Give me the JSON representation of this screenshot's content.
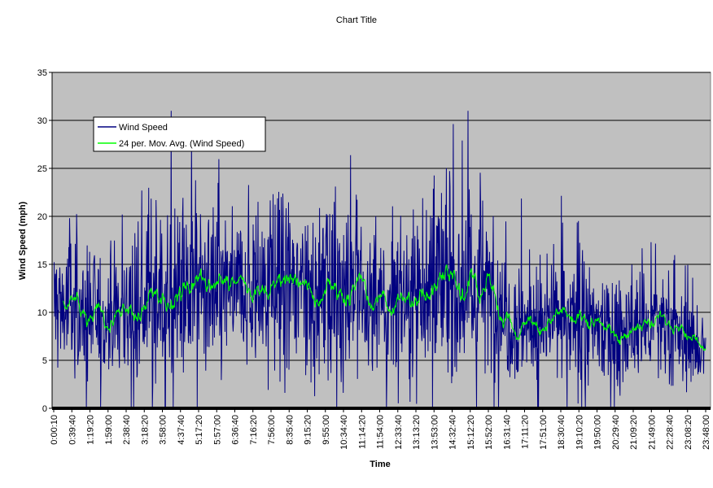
{
  "chart_data": {
    "type": "line",
    "title": "Chart Title",
    "xlabel": "Time",
    "ylabel": "Wind Speed (mph)",
    "ylim": [
      0,
      35
    ],
    "y_ticks": [
      0,
      5,
      10,
      15,
      20,
      25,
      30,
      35
    ],
    "x_tick_labels": [
      "0:00:10",
      "0:39:40",
      "1:19:20",
      "1:59:00",
      "2:38:40",
      "3:18:20",
      "3:58:00",
      "4:37:40",
      "5:17:20",
      "5:57:00",
      "6:36:40",
      "7:16:20",
      "7:56:00",
      "8:35:40",
      "9:15:20",
      "9:55:00",
      "10:34:40",
      "11:14:20",
      "11:54:00",
      "12:33:40",
      "13:13:20",
      "13:53:00",
      "14:32:40",
      "15:12:20",
      "15:52:00",
      "16:31:40",
      "17:11:20",
      "17:51:00",
      "18:30:40",
      "19:10:20",
      "19:50:00",
      "20:29:40",
      "21:09:20",
      "21:49:00",
      "22:28:40",
      "23:08:20",
      "23:48:00"
    ],
    "grid": true,
    "legend_position": "top-left",
    "series": [
      {
        "name": "Wind Speed",
        "color": "#000080",
        "sample_interval": "10 s",
        "values_summary": "dense 10-second wind speed samples, mostly 4-20 mph, peaks near 31 mph"
      },
      {
        "name": "24 per. Mov. Avg. (Wind Speed)",
        "color": "#00ff00",
        "moving_average_trend": [
          {
            "time": "0:00:10",
            "value": 11.0
          },
          {
            "time": "1:19:20",
            "value": 9.5
          },
          {
            "time": "2:38:40",
            "value": 10.0
          },
          {
            "time": "3:58:00",
            "value": 12.0
          },
          {
            "time": "5:17:20",
            "value": 12.5
          },
          {
            "time": "6:36:40",
            "value": 12.0
          },
          {
            "time": "7:56:00",
            "value": 12.0
          },
          {
            "time": "8:35:40",
            "value": 13.0
          },
          {
            "time": "9:15:20",
            "value": 12.0
          },
          {
            "time": "9:55:00",
            "value": 11.5
          },
          {
            "time": "10:34:40",
            "value": 13.0
          },
          {
            "time": "11:14:20",
            "value": 11.5
          },
          {
            "time": "11:54:00",
            "value": 10.5
          },
          {
            "time": "12:33:40",
            "value": 11.0
          },
          {
            "time": "13:13:20",
            "value": 12.5
          },
          {
            "time": "13:53:00",
            "value": 13.0
          },
          {
            "time": "14:32:40",
            "value": 12.5
          },
          {
            "time": "15:12:20",
            "value": 12.5
          },
          {
            "time": "15:52:00",
            "value": 12.0
          },
          {
            "time": "16:31:40",
            "value": 10.0
          },
          {
            "time": "17:11:20",
            "value": 9.0
          },
          {
            "time": "17:51:00",
            "value": 8.5
          },
          {
            "time": "18:30:40",
            "value": 9.0
          },
          {
            "time": "19:10:20",
            "value": 8.5
          },
          {
            "time": "19:50:00",
            "value": 8.5
          },
          {
            "time": "20:29:40",
            "value": 8.0
          },
          {
            "time": "21:09:20",
            "value": 8.0
          },
          {
            "time": "21:49:00",
            "value": 8.5
          },
          {
            "time": "22:28:40",
            "value": 8.0
          },
          {
            "time": "23:08:20",
            "value": 7.0
          },
          {
            "time": "23:48:00",
            "value": 6.5
          }
        ]
      }
    ]
  }
}
